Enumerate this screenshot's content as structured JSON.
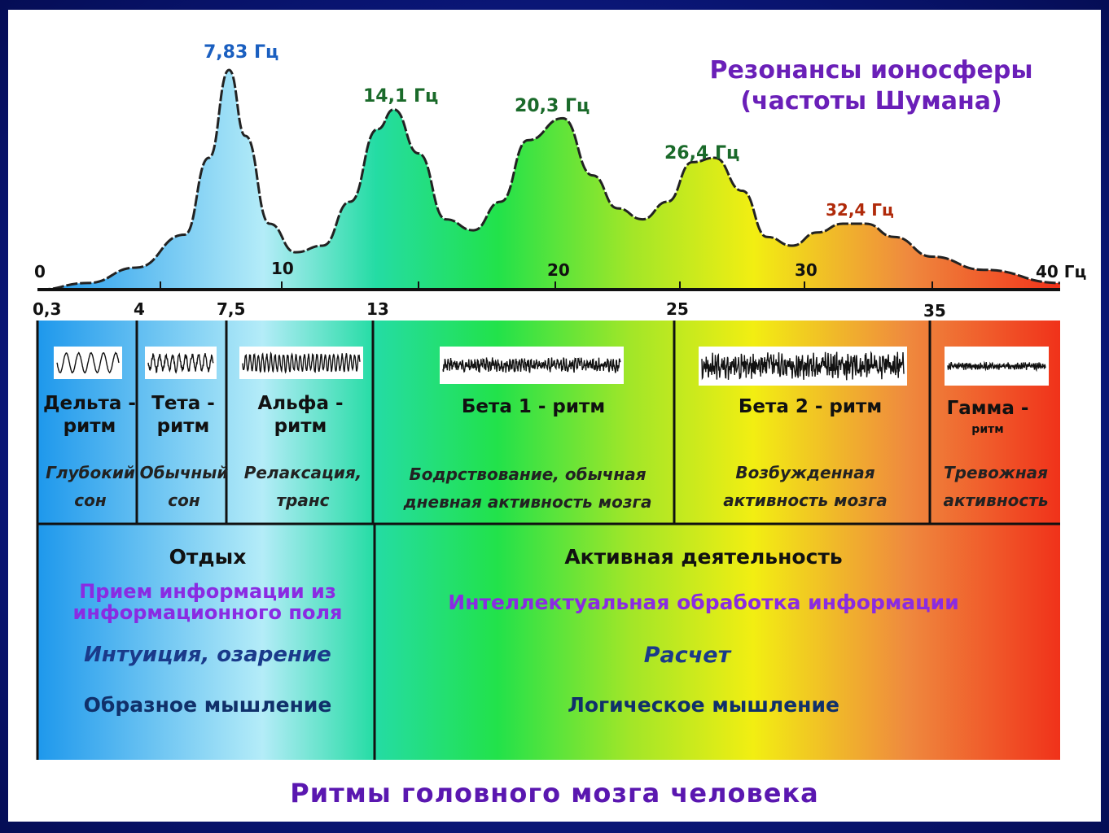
{
  "title": {
    "line1": "Резонансы ионосферы",
    "line2": "(частоты Шумана)"
  },
  "colors": {
    "title_purple": "#6a1fb8",
    "peak_blue": "#1a5fc0",
    "peak_green": "#1a6a2a",
    "peak_red": "#b02a0a",
    "frame_blue": "#0c1a86"
  },
  "peaks": [
    {
      "label": "7,83 Гц",
      "freq": 7.83,
      "color": "#1a5fc0"
    },
    {
      "label": "14,1 Гц",
      "freq": 14.1,
      "color": "#1a6a2a"
    },
    {
      "label": "20,3 Гц",
      "freq": 20.3,
      "color": "#1a6a2a"
    },
    {
      "label": "26,4  Гц",
      "freq": 26.4,
      "color": "#1a6a2a"
    },
    {
      "label": "32,4 Гц",
      "freq": 32.4,
      "color": "#b02a0a"
    }
  ],
  "chart_data": {
    "type": "area",
    "title": "Резонансы ионосферы (частоты Шумана)",
    "xlabel": "Гц",
    "xlim": [
      0,
      40
    ],
    "x": [
      0,
      2,
      4,
      6,
      7,
      7.83,
      8.5,
      9.5,
      10.5,
      11.5,
      12.5,
      13.5,
      14.1,
      15,
      16,
      17,
      18,
      19,
      20.3,
      21.5,
      22.5,
      23.5,
      24.5,
      25.5,
      26.4,
      27.5,
      28.5,
      29.5,
      30.5,
      31.5,
      32.4,
      33.5,
      35,
      37,
      40
    ],
    "y": [
      0,
      0.03,
      0.1,
      0.25,
      0.6,
      1.0,
      0.7,
      0.3,
      0.17,
      0.2,
      0.4,
      0.73,
      0.82,
      0.62,
      0.32,
      0.27,
      0.4,
      0.68,
      0.78,
      0.52,
      0.37,
      0.32,
      0.4,
      0.58,
      0.6,
      0.45,
      0.24,
      0.2,
      0.26,
      0.3,
      0.3,
      0.24,
      0.15,
      0.09,
      0.03
    ],
    "series": [
      {
        "name": "",
        "peaks_hz": [
          7.83,
          14.1,
          20.3,
          26.4,
          32.4
        ]
      }
    ]
  },
  "axis_top": {
    "ticks": [
      {
        "value": 0,
        "label": "0"
      },
      {
        "value": 10,
        "label": "10"
      },
      {
        "value": 20,
        "label": "20"
      },
      {
        "value": 30,
        "label": "30"
      },
      {
        "value": 40,
        "label": "40 Гц"
      }
    ]
  },
  "axis_bottom": {
    "ticks": [
      {
        "value": 0.3,
        "label": "0,3"
      },
      {
        "value": 4,
        "label": "4"
      },
      {
        "value": 7.5,
        "label": "7,5"
      },
      {
        "value": 13,
        "label": "13"
      },
      {
        "value": 25,
        "label": "25"
      },
      {
        "value": 35,
        "label": "35"
      }
    ]
  },
  "rhythms": [
    {
      "name": "Дельта -\nритм",
      "sub": "",
      "desc": "Глубокий\nсон"
    },
    {
      "name": "Тета -\nритм",
      "sub": "",
      "desc": "Обычный\nсон"
    },
    {
      "name": "Альфа -\nритм",
      "sub": "",
      "desc": "Релаксация,\nтранс"
    },
    {
      "name": "Бета 1 - ритм",
      "sub": "",
      "desc": "Бодрствование, обычная\nдневная активность мозга"
    },
    {
      "name": "Бета 2 - ритм",
      "sub": "",
      "desc": "Возбужденная\nактивность мозга"
    },
    {
      "name": "Гамма -",
      "sub": "ритм",
      "desc": "Тревожная\nактивность"
    }
  ],
  "rest": {
    "heading": "Отдых",
    "purple": "Прием информации из\nинформационного  поля",
    "italic": "Интуиция, озарение",
    "plain": "Образное мышление"
  },
  "active": {
    "heading": "Активная деятельность",
    "purple": "Интеллектуальная  обработка  информации",
    "italic": "Расчет",
    "plain": "Логическое мышление"
  },
  "footer": "Ритмы  головного  мозга  человека"
}
